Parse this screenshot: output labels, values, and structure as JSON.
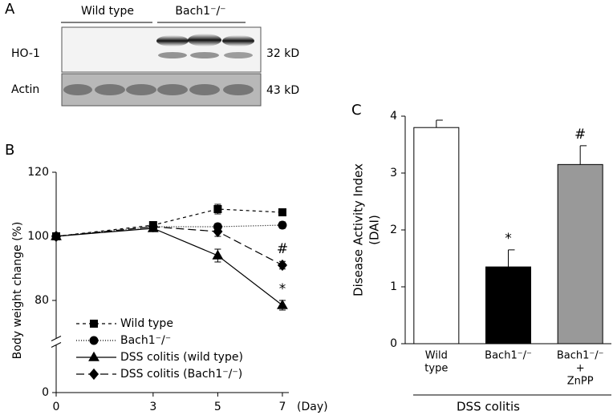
{
  "blot": {
    "label": "A",
    "groups": [
      "Wild type",
      "Bach1⁻/⁻"
    ],
    "rows": [
      {
        "name": "HO-1",
        "size": "32 kD"
      },
      {
        "name": "Actin",
        "size": "43 kD"
      }
    ]
  },
  "chart_data": [
    {
      "type": "line",
      "label": "B",
      "ylabel": "Body weight change  (%)",
      "xlabel": "(Day)",
      "x": [
        0,
        3,
        5,
        7
      ],
      "xlim": [
        0,
        7.2
      ],
      "xticks": [
        0,
        3,
        5,
        7
      ],
      "ylim": [
        0,
        120
      ],
      "yticks": [
        0,
        80,
        100,
        120
      ],
      "axis_break": [
        10,
        72
      ],
      "legend": "lower left",
      "series": [
        {
          "name": "Wild type",
          "color": "#000000",
          "marker": "square",
          "dash": "4,4",
          "values": [
            100,
            103.5,
            108.5,
            107.5
          ],
          "errors": [
            0,
            1,
            1.5,
            0.8
          ]
        },
        {
          "name": "Bach1⁻/⁻",
          "color": "#000000",
          "marker": "circle",
          "dash": "1,2",
          "values": [
            100,
            103,
            103,
            103.5
          ],
          "errors": [
            0,
            1,
            1,
            1
          ]
        },
        {
          "name": "DSS colitis (wild type)",
          "color": "#000000",
          "marker": "triangle",
          "dash": "none",
          "values": [
            100,
            102.5,
            94,
            78.5
          ],
          "errors": [
            0,
            1,
            2,
            1.5
          ]
        },
        {
          "name": "DSS colitis (Bach1⁻/⁻)",
          "color": "#000000",
          "marker": "diamond",
          "dash": "10,5",
          "values": [
            100,
            103,
            101.5,
            91
          ],
          "errors": [
            0,
            1,
            1.5,
            1.2
          ]
        }
      ],
      "annotations": [
        {
          "text": "#",
          "x": 7,
          "y": 96
        },
        {
          "text": "*",
          "x": 7,
          "y": 83.5
        }
      ]
    },
    {
      "type": "bar",
      "label": "C",
      "ylabel": [
        "Disease Activity Index",
        "(DAI)"
      ],
      "categories": [
        [
          "Wild",
          "type"
        ],
        [
          "Bach1⁻/⁻"
        ],
        [
          "Bach1⁻/⁻",
          "+",
          "ZnPP"
        ]
      ],
      "values": [
        3.8,
        1.35,
        3.15
      ],
      "errors": [
        0.13,
        0.3,
        0.33
      ],
      "colors": [
        "#ffffff",
        "#000000",
        "#999999"
      ],
      "ylim": [
        0,
        4
      ],
      "yticks": [
        0,
        1,
        2,
        3,
        4
      ],
      "group_label": "DSS colitis",
      "annotations": [
        {
          "text": "*",
          "category": 1
        },
        {
          "text": "#",
          "category": 2
        }
      ]
    }
  ]
}
